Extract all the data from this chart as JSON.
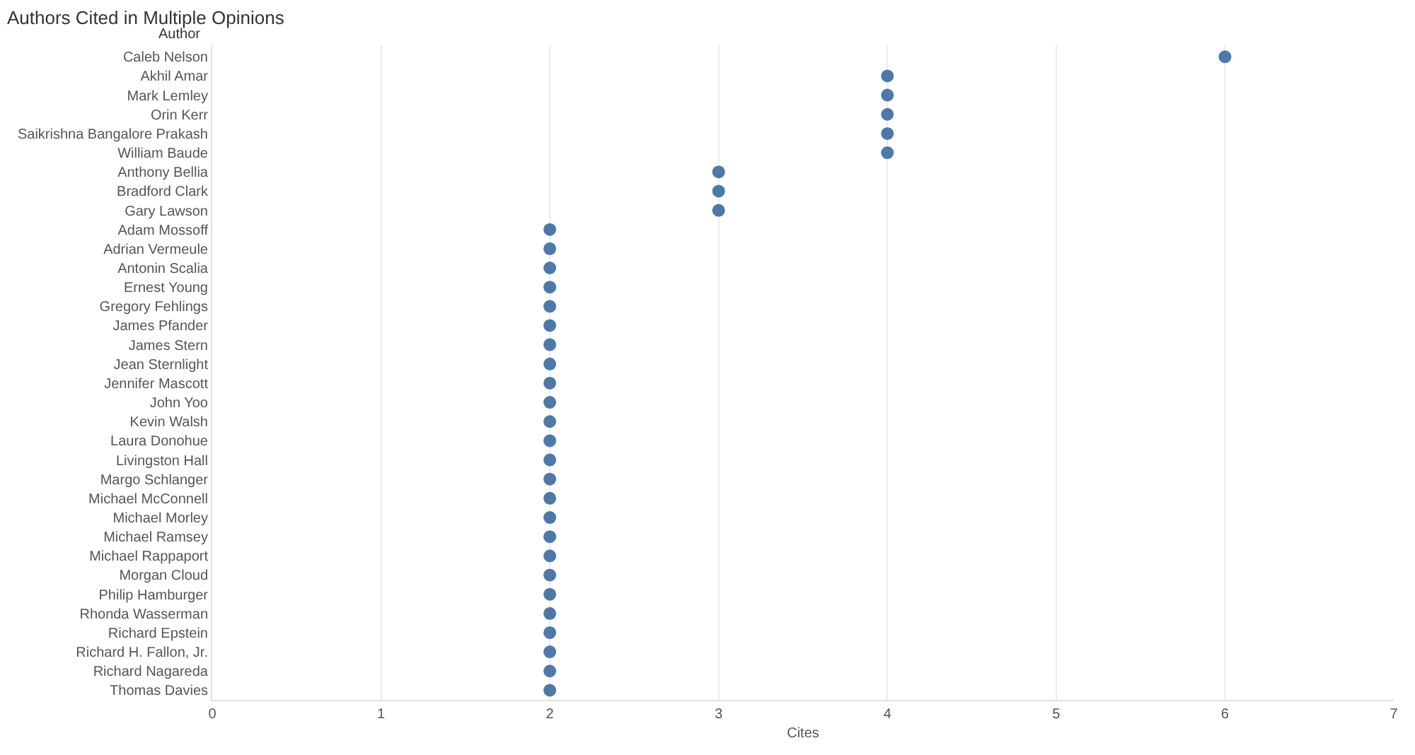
{
  "chart_data": {
    "type": "scatter",
    "orientation": "horizontal",
    "title": "Authors Cited in Multiple Opinions",
    "ylabel": "Author",
    "xlabel": "Cites",
    "categories": [
      "Caleb Nelson",
      "Akhil Amar",
      "Mark Lemley",
      "Orin Kerr",
      "Saikrishna Bangalore Prakash",
      "William Baude",
      "Anthony Bellia",
      "Bradford Clark",
      "Gary Lawson",
      "Adam Mossoff",
      "Adrian Vermeule",
      "Antonin Scalia",
      "Ernest Young",
      "Gregory Fehlings",
      "James Pfander",
      "James Stern",
      "Jean Sternlight",
      "Jennifer Mascott",
      "John Yoo",
      "Kevin Walsh",
      "Laura Donohue",
      "Livingston Hall",
      "Margo Schlanger",
      "Michael McConnell",
      "Michael Morley",
      "Michael Ramsey",
      "Michael Rappaport",
      "Morgan Cloud",
      "Philip Hamburger",
      "Rhonda Wasserman",
      "Richard Epstein",
      "Richard H. Fallon, Jr.",
      "Richard Nagareda",
      "Thomas Davies"
    ],
    "values": [
      6,
      4,
      4,
      4,
      4,
      4,
      3,
      3,
      3,
      2,
      2,
      2,
      2,
      2,
      2,
      2,
      2,
      2,
      2,
      2,
      2,
      2,
      2,
      2,
      2,
      2,
      2,
      2,
      2,
      2,
      2,
      2,
      2,
      2
    ],
    "color": "#4e79a7",
    "marker": "circle",
    "xlim": [
      0,
      7
    ],
    "xticks": [
      0,
      1,
      2,
      3,
      4,
      5,
      6,
      7
    ],
    "grid": "x",
    "legend": false
  }
}
